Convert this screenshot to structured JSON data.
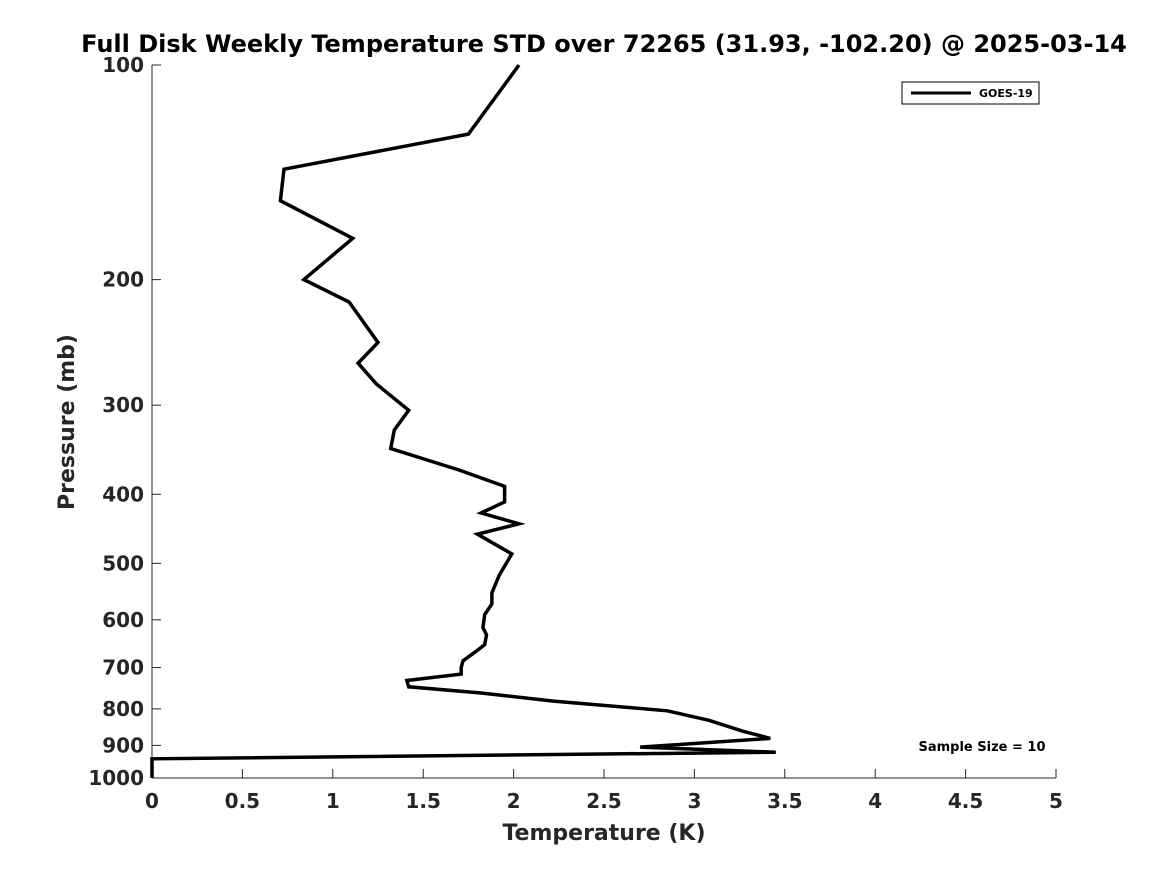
{
  "chart_data": {
    "type": "line",
    "title": "Full Disk Weekly Temperature STD over 72265 (31.93, -102.20) @ 2025-03-14",
    "xlabel": "Temperature (K)",
    "ylabel": "Pressure (mb)",
    "xlim": [
      0,
      5
    ],
    "ylim": [
      100,
      1000
    ],
    "yscale": "log",
    "y_reversed": true,
    "grid": false,
    "legend_position": "top-right",
    "x_ticks": [
      0,
      0.5,
      1,
      1.5,
      2,
      2.5,
      3,
      3.5,
      4,
      4.5,
      5
    ],
    "x_tick_labels": [
      "0",
      "0.5",
      "1",
      "1.5",
      "2",
      "2.5",
      "3",
      "3.5",
      "4",
      "4.5",
      "5"
    ],
    "y_ticks": [
      100,
      200,
      300,
      400,
      500,
      600,
      700,
      800,
      900,
      1000
    ],
    "y_tick_labels": [
      "100",
      "200",
      "300",
      "400",
      "500",
      "600",
      "700",
      "800",
      "900",
      "1000"
    ],
    "series": [
      {
        "name": "GOES-19",
        "color": "#000000",
        "x": [
          2.03,
          1.75,
          0.73,
          0.71,
          1.11,
          0.84,
          1.09,
          1.25,
          1.14,
          1.24,
          1.42,
          1.34,
          1.32,
          1.7,
          1.95,
          1.95,
          1.82,
          2.03,
          1.8,
          1.99,
          1.92,
          1.88,
          1.88,
          1.84,
          1.83,
          1.85,
          1.84,
          1.79,
          1.72,
          1.71,
          1.71,
          1.41,
          1.42,
          1.82,
          2.22,
          2.85,
          3.08,
          3.27,
          3.42,
          2.7,
          3.45,
          0.0,
          0.0
        ],
        "y": [
          100,
          125,
          140,
          155,
          175,
          200,
          215,
          245,
          262,
          280,
          305,
          325,
          345,
          370,
          390,
          410,
          425,
          440,
          455,
          485,
          520,
          550,
          570,
          590,
          615,
          630,
          650,
          665,
          685,
          700,
          715,
          730,
          745,
          760,
          780,
          805,
          830,
          860,
          880,
          905,
          920,
          940,
          1000
        ]
      }
    ],
    "annotations": [
      "Sample Size = 10"
    ]
  }
}
